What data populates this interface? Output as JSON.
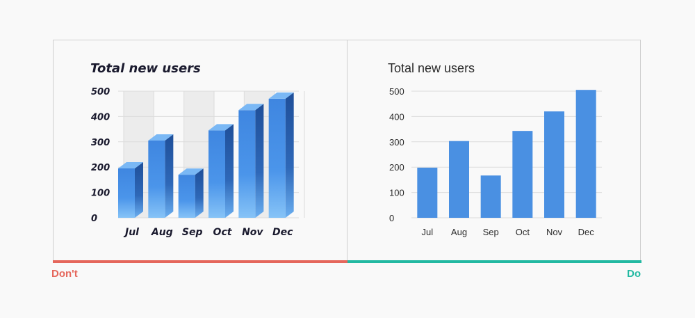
{
  "colors": {
    "background": "#f9f9f9",
    "bar_blue": "#4a90e2",
    "dont_red": "#e5675c",
    "do_teal": "#23b9a2",
    "grid": "#dcdcdc",
    "band": "#ececec"
  },
  "labels": {
    "dont": "Don't",
    "do": "Do"
  },
  "chart_data": [
    {
      "id": "bad",
      "type": "bar",
      "style": "3d-gradient",
      "title": "Total new users",
      "categories": [
        "Jul",
        "Aug",
        "Sep",
        "Oct",
        "Nov",
        "Dec"
      ],
      "values": [
        195,
        305,
        170,
        345,
        425,
        470
      ],
      "yticks": [
        0,
        100,
        200,
        300,
        400,
        500
      ],
      "ylim": [
        0,
        500
      ],
      "grid": true,
      "alternating_bands": true
    },
    {
      "id": "good",
      "type": "bar",
      "style": "flat",
      "title": "Total new users",
      "categories": [
        "Jul",
        "Aug",
        "Sep",
        "Oct",
        "Nov",
        "Dec"
      ],
      "values": [
        198,
        303,
        167,
        343,
        420,
        505
      ],
      "yticks": [
        0,
        100,
        200,
        300,
        400,
        500
      ],
      "ylim": [
        0,
        500
      ],
      "grid": true
    }
  ]
}
